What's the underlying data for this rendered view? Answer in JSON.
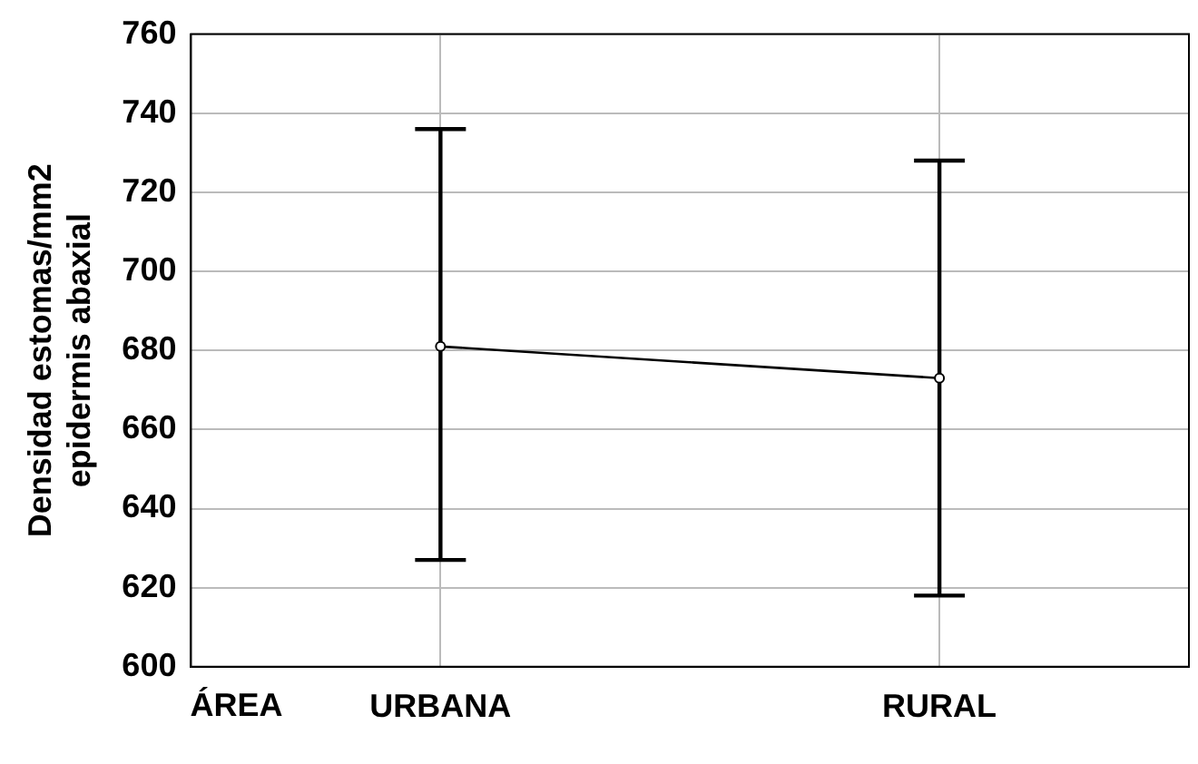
{
  "chart_data": {
    "type": "line",
    "xlabel": "ÁREA",
    "ylabel": "Densidad estomas/mm2\nepidermis abaxial",
    "categories": [
      "URBANA",
      "RURAL"
    ],
    "series": [
      {
        "color": "#000000",
        "values": [
          681,
          673
        ],
        "errors": [
          [
            627,
            736
          ],
          [
            618,
            728
          ]
        ]
      }
    ],
    "ylim": [
      600,
      760
    ],
    "yticks": [
      600,
      620,
      640,
      660,
      680,
      700,
      720,
      740,
      760
    ],
    "grid": true,
    "legend": false,
    "marker": "circle",
    "line_style": "solid"
  }
}
